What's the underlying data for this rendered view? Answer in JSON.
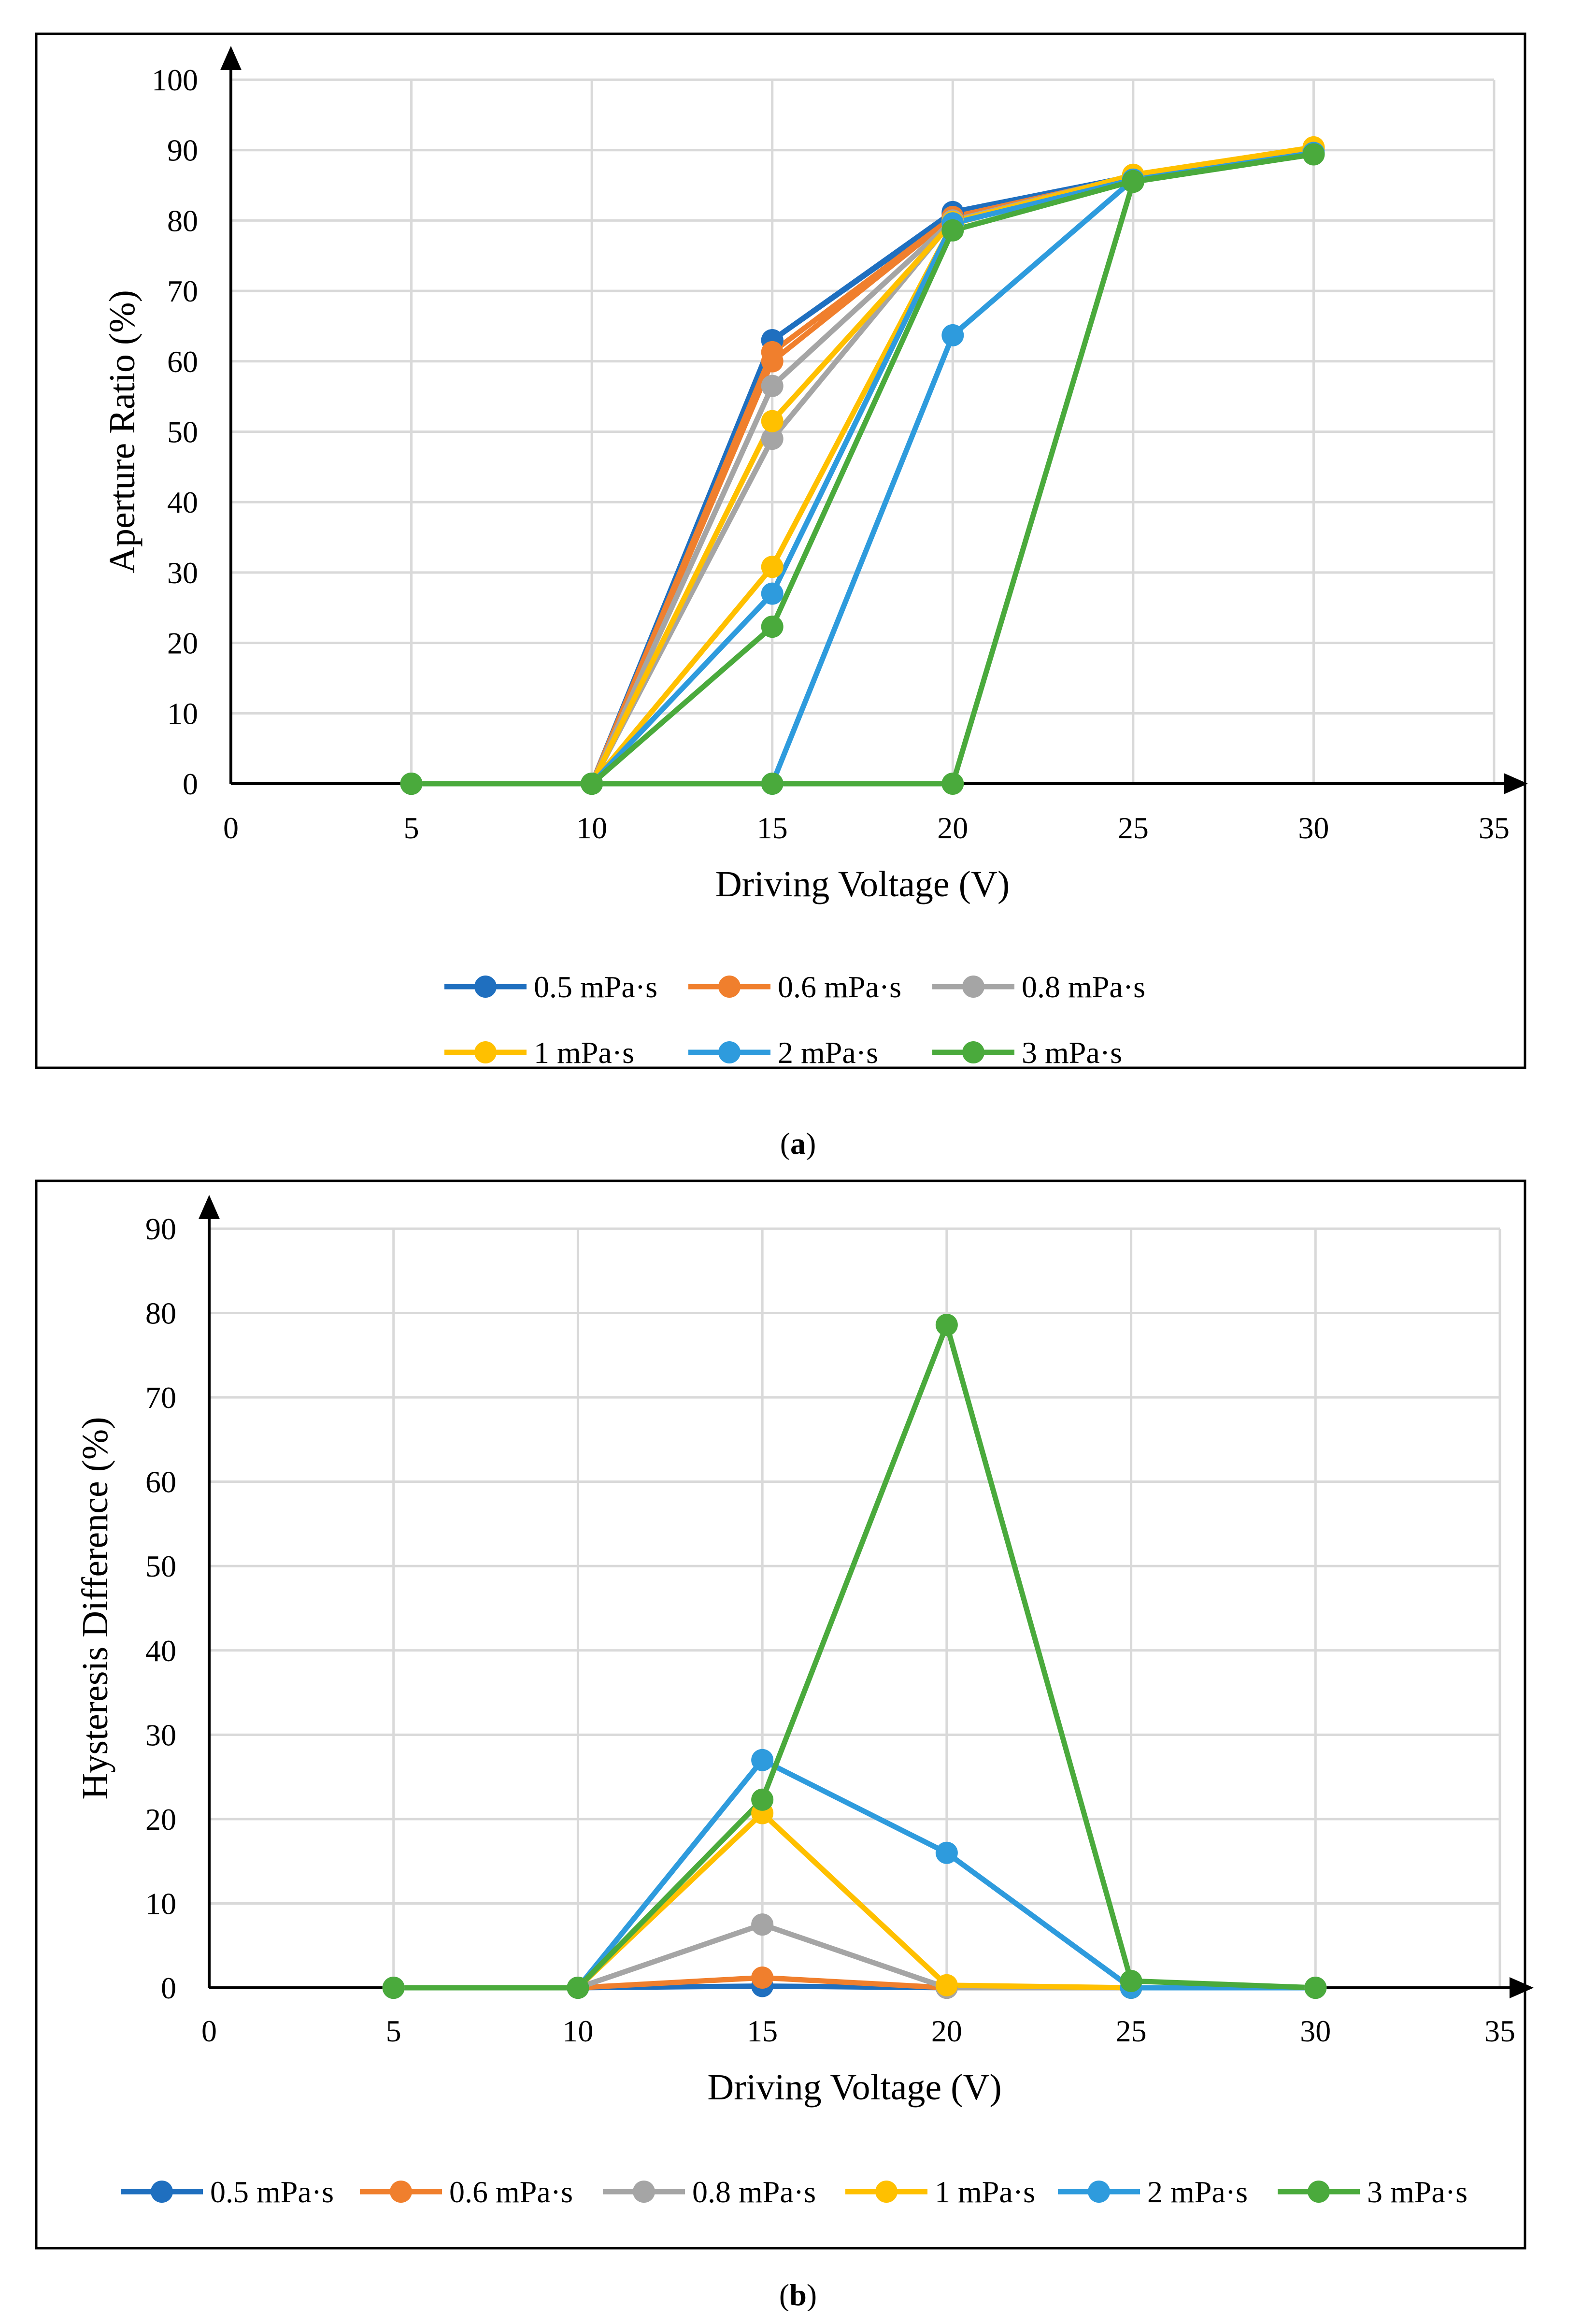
{
  "colors": {
    "0.5 mPa·s": "#1F6FBF",
    "0.6 mPa·s": "#F07F2D",
    "0.8 mPa·s": "#A5A5A5",
    "1 mPa·s": "#FFC000",
    "2 mPa·s": "#2E9BDD",
    "3 mPa·s": "#4AAA3C"
  },
  "chart_data": [
    {
      "type": "line",
      "caption": "(a)",
      "title": "",
      "xlabel": "Driving Voltage (V)",
      "ylabel": "Aperture Ratio (%)",
      "xlim": [
        0,
        35
      ],
      "ylim": [
        0,
        100
      ],
      "xticks": [
        0,
        5,
        10,
        15,
        20,
        25,
        30,
        35
      ],
      "yticks": [
        0,
        10,
        20,
        30,
        40,
        50,
        60,
        70,
        80,
        90,
        100
      ],
      "xtick_labels": [
        "0",
        "5",
        "10",
        "15",
        "20",
        "25",
        "30",
        "35"
      ],
      "ytick_labels": [
        "0",
        "10",
        "20",
        "30",
        "40",
        "50",
        "60",
        "70",
        "80",
        "90",
        "100"
      ],
      "grid": true,
      "legend_position": "bottom",
      "legend_rows": [
        3,
        3
      ],
      "series": [
        {
          "name": "0.5 mPa·s",
          "x": [
            5,
            10,
            15,
            20,
            25,
            30,
            25,
            20,
            15,
            10,
            5
          ],
          "y": [
            0,
            0,
            63,
            81.2,
            86.3,
            90.1,
            86.3,
            81,
            63,
            0,
            0
          ]
        },
        {
          "name": "0.6 mPa·s",
          "x": [
            5,
            10,
            15,
            20,
            25,
            30,
            25,
            20,
            15,
            10,
            5
          ],
          "y": [
            0,
            0,
            60,
            80.5,
            86.2,
            90.3,
            86.2,
            80.5,
            61.3,
            0,
            0
          ]
        },
        {
          "name": "0.8 mPa·s",
          "x": [
            5,
            10,
            15,
            20,
            25,
            30,
            25,
            20,
            15,
            10,
            5
          ],
          "y": [
            0,
            0,
            49,
            80,
            86.4,
            90.2,
            86.3,
            80,
            56.5,
            0,
            0
          ]
        },
        {
          "name": "1 mPa·s",
          "x": [
            5,
            10,
            15,
            20,
            25,
            30,
            25,
            20,
            15,
            10,
            5
          ],
          "y": [
            0,
            0,
            30.8,
            79.5,
            86.5,
            90.4,
            86.4,
            79.8,
            51.5,
            0,
            0
          ]
        },
        {
          "name": "2 mPa·s",
          "x": [
            5,
            10,
            15,
            20,
            25,
            30,
            25,
            20,
            15,
            10,
            5
          ],
          "y": [
            0,
            0,
            0,
            63.7,
            85.8,
            89.6,
            85.8,
            79.6,
            27,
            0,
            0
          ]
        },
        {
          "name": "3 mPa·s",
          "x": [
            5,
            10,
            15,
            20,
            25,
            30,
            25,
            20,
            15,
            10,
            5
          ],
          "y": [
            0,
            0,
            0,
            0,
            85.5,
            89.4,
            85.6,
            78.6,
            22.3,
            0,
            0
          ]
        }
      ]
    },
    {
      "type": "line",
      "caption": "(b)",
      "title": "",
      "xlabel": "Driving Voltage (V)",
      "ylabel": "Hysteresis Difference (%)",
      "xlim": [
        0,
        35
      ],
      "ylim": [
        0,
        90
      ],
      "xticks": [
        0,
        5,
        10,
        15,
        20,
        25,
        30,
        35
      ],
      "yticks": [
        0,
        10,
        20,
        30,
        40,
        50,
        60,
        70,
        80,
        90
      ],
      "xtick_labels": [
        "0",
        "5",
        "10",
        "15",
        "20",
        "25",
        "30",
        "35"
      ],
      "ytick_labels": [
        "0",
        "10",
        "20",
        "30",
        "40",
        "50",
        "60",
        "70",
        "80",
        "90"
      ],
      "grid": true,
      "legend_position": "bottom",
      "legend_rows": [
        6
      ],
      "series": [
        {
          "name": "0.5 mPa·s",
          "x": [
            5,
            10,
            15,
            20,
            25,
            30
          ],
          "y": [
            0,
            0,
            0.2,
            0,
            0,
            0
          ]
        },
        {
          "name": "0.6 mPa·s",
          "x": [
            5,
            10,
            15,
            20,
            25,
            30
          ],
          "y": [
            0,
            0,
            1.2,
            0,
            0,
            0
          ]
        },
        {
          "name": "0.8 mPa·s",
          "x": [
            5,
            10,
            15,
            20,
            25,
            30
          ],
          "y": [
            0,
            0,
            7.5,
            0,
            0,
            0
          ]
        },
        {
          "name": "1 mPa·s",
          "x": [
            5,
            10,
            15,
            20,
            25,
            30
          ],
          "y": [
            0,
            0,
            20.7,
            0.3,
            0,
            0
          ]
        },
        {
          "name": "2 mPa·s",
          "x": [
            5,
            10,
            15,
            20,
            25,
            30
          ],
          "y": [
            0,
            0,
            27,
            16,
            0,
            0
          ]
        },
        {
          "name": "3 mPa·s",
          "x": [
            5,
            10,
            15,
            20,
            25,
            30
          ],
          "y": [
            0,
            0,
            22.3,
            78.6,
            0.8,
            0
          ]
        }
      ]
    }
  ]
}
